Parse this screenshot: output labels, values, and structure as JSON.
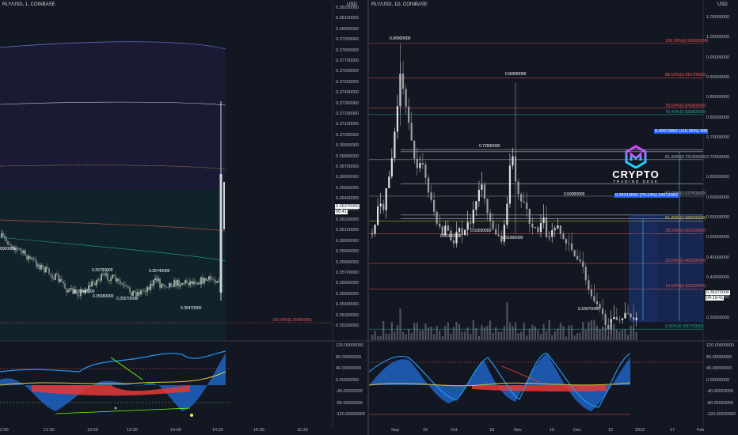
{
  "left_chart": {
    "symbol": "RLY/USD, 1, COINBASE",
    "currency": "USD",
    "price_scale": [
      "0.38200000",
      "0.38100000",
      "0.38000000",
      "0.37900000",
      "0.37800000",
      "0.37700000",
      "0.37600000",
      "0.37500000",
      "0.37400000",
      "0.37300000",
      "0.37200000",
      "0.37100000",
      "0.37000000",
      "0.36900000",
      "0.36800000",
      "0.36700000",
      "0.36600000",
      "0.36500000",
      "0.36400000",
      "0.36300000",
      "0.36200000",
      "0.36100000",
      "0.36000000",
      "0.35900000",
      "0.35800000",
      "0.35700000",
      "0.35600000",
      "0.35500000",
      "0.35400000",
      "0.35300000",
      "0.35200000"
    ],
    "current_price": "0.36370000",
    "countdown": "00:41",
    "left_edge_label": "0000000",
    "fib_label": "100.00%(0.35480000)",
    "time_axis": [
      "2:00",
      "12:30",
      "13:00",
      "13:30",
      "14:00",
      "14:30",
      "15:00",
      "15:30"
    ],
    "annotations": [
      "0.35700000",
      "0.35640000",
      "0.35580000",
      "0.35570000",
      "0.35740000",
      "0.35470000"
    ],
    "osc_scale": [
      "120.00000000",
      "80.00000000",
      "40.00000000",
      "0.00000000",
      "-40.00000000",
      "-80.00000000",
      "-120.00000000"
    ]
  },
  "right_chart": {
    "symbol": "RLY/USD, 1D, COINBASE",
    "currency": "USD",
    "price_scale": [
      "1.05000000",
      "1.00000000",
      "0.95000000",
      "0.90000000",
      "0.85000000",
      "0.80000000",
      "0.75000000",
      "0.70000000",
      "0.65000000",
      "0.60000000",
      "0.55000000",
      "0.50000000",
      "0.45000000",
      "0.40000000",
      "0.35000000",
      "0.30000000"
    ],
    "current_price": "0.36370000",
    "countdown": "04:19:41",
    "fib_levels": [
      "100.00%(0.99000000)",
      "88.60%(0.91070000)",
      "78.60%(0.84080000)",
      "76.40%(0.82580000)",
      "61.80%(0.72190000)",
      "50.00%(0.63760000)",
      "38.20%(0.55100000)",
      "61.80%(0.58050000)",
      "23.60%(0.48230000)",
      "14.60%(0.42350000)",
      "0.00%(0.33070000)"
    ],
    "measure_top": "0.40073062 (116.06%) 400",
    "measure_mid": "0.24213062 (70.13%) 24213062",
    "annotations": [
      "0.99000000",
      "0.90000000",
      "0.72000000",
      "0.59000000",
      "0.51420000",
      "0.53030000",
      "0.51000000",
      "0.33070000"
    ],
    "time_axis": [
      "Sep",
      "15",
      "Oct",
      "18",
      "Nov",
      "15",
      "Dec",
      "15",
      "2022",
      "17",
      "Feb"
    ],
    "osc_scale": [
      "120.00000000",
      "80.00000000",
      "40.00000000",
      "0.00000000",
      "-40.00000000",
      "-80.00000000",
      "-120.00000000"
    ]
  },
  "logo": {
    "name": "CRYPTO",
    "tagline": "TRADING DESK"
  },
  "colors": {
    "background": "#131722",
    "up": "#26a69a",
    "down": "#ef5350",
    "candle": "#d1d4dc",
    "current_price_bg": "#ffffff",
    "measure_blue": "#2962ff",
    "osc_blue": "#2196f3",
    "osc_red": "#f44336",
    "osc_yellow": "#e3c832",
    "osc_green": "#66bb6a"
  }
}
